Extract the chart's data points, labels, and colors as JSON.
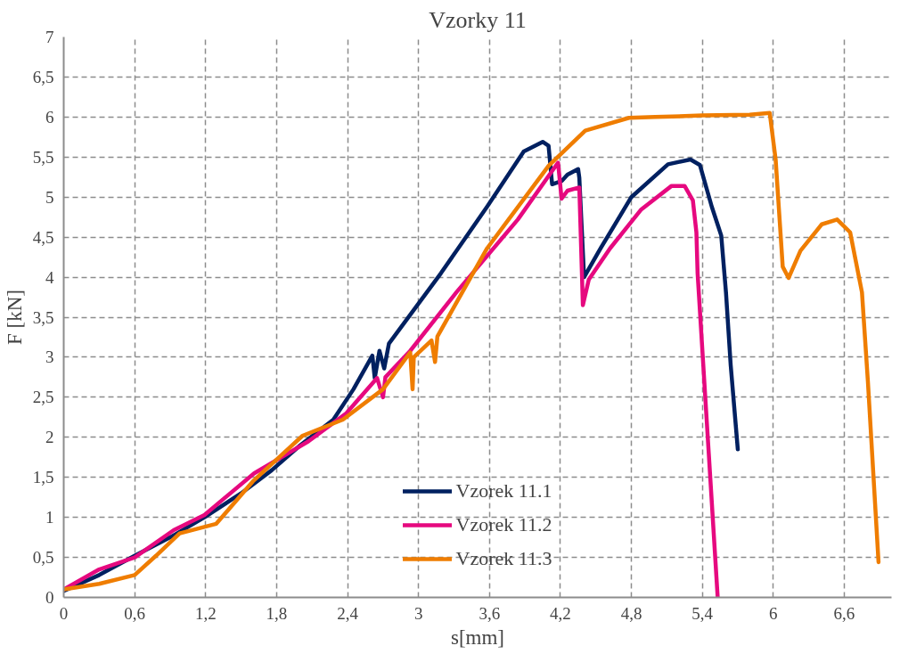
{
  "chart_data": {
    "type": "line",
    "title": "Vzorky 11",
    "xlabel": "s[mm]",
    "ylabel": "F [kN]",
    "xlim": [
      0,
      7
    ],
    "ylim": [
      0,
      7
    ],
    "xticks": [
      0,
      {
        "value": 0.6,
        "label": "0,6"
      },
      {
        "value": 1.2,
        "label": "1,2"
      },
      {
        "value": 1.8,
        "label": "1,8"
      },
      {
        "value": 2.4,
        "label": "2,4"
      },
      3,
      {
        "value": 3.6,
        "label": "3,6"
      },
      {
        "value": 4.2,
        "label": "4,2"
      },
      {
        "value": 4.8,
        "label": "4,8"
      },
      {
        "value": 5.4,
        "label": "5,4"
      },
      6,
      {
        "value": 6.6,
        "label": "6,6"
      }
    ],
    "yticks": [
      0,
      {
        "value": 0.5,
        "label": "0,5"
      },
      1,
      {
        "value": 1.5,
        "label": "1,5"
      },
      2,
      {
        "value": 2.5,
        "label": "2,5"
      },
      3,
      {
        "value": 3.5,
        "label": "3,5"
      },
      4,
      {
        "value": 4.5,
        "label": "4,5"
      },
      5,
      {
        "value": 5.5,
        "label": "5,5"
      },
      6,
      {
        "value": 6.5,
        "label": "6,5"
      },
      7
    ],
    "grid": true,
    "legend": "bottom",
    "line_style": "solid",
    "marker": "none",
    "series": [
      {
        "name": "Vzorek 11.1",
        "color": "#002060",
        "x": [
          0,
          0.3,
          0.6,
          0.9,
          1.19,
          1.5,
          1.76,
          2.0,
          2.28,
          2.45,
          2.61,
          2.63,
          2.67,
          2.71,
          2.75,
          3.19,
          3.58,
          3.89,
          4.05,
          4.1,
          4.13,
          4.21,
          4.26,
          4.35,
          4.36,
          4.4,
          4.54,
          4.8,
          5.11,
          5.3,
          5.38,
          5.48,
          5.56,
          5.6,
          5.64,
          5.7
        ],
        "values": [
          0.08,
          0.28,
          0.52,
          0.75,
          1.0,
          1.3,
          1.59,
          1.9,
          2.22,
          2.6,
          3.02,
          2.74,
          3.08,
          2.86,
          3.17,
          4.05,
          4.88,
          5.57,
          5.69,
          5.64,
          5.16,
          5.2,
          5.28,
          5.35,
          5.24,
          4.0,
          4.36,
          5.0,
          5.41,
          5.47,
          5.4,
          4.88,
          4.52,
          3.81,
          2.9,
          1.85
        ]
      },
      {
        "name": "Vzorek 11.2",
        "color": "#e6097f",
        "x": [
          0,
          0.3,
          0.6,
          0.93,
          1.19,
          1.61,
          2.07,
          2.39,
          2.65,
          2.7,
          2.72,
          2.93,
          3.32,
          3.84,
          4.18,
          4.21,
          4.26,
          4.36,
          4.39,
          4.44,
          4.62,
          4.88,
          5.14,
          5.25,
          5.32,
          5.35,
          5.36,
          5.53
        ],
        "values": [
          0.1,
          0.35,
          0.5,
          0.84,
          1.03,
          1.55,
          1.95,
          2.3,
          2.74,
          2.5,
          2.75,
          3.08,
          3.81,
          4.72,
          5.43,
          4.98,
          5.08,
          5.12,
          3.65,
          3.97,
          4.36,
          4.84,
          5.14,
          5.14,
          4.96,
          4.56,
          4.05,
          0
        ]
      },
      {
        "name": "Vzorek 11.3",
        "color": "#ef7d00",
        "x": [
          0,
          0.3,
          0.6,
          0.78,
          0.98,
          1.29,
          1.6,
          2.02,
          2.36,
          2.7,
          2.93,
          2.95,
          2.96,
          3.11,
          3.14,
          3.16,
          3.58,
          4.1,
          4.41,
          4.78,
          5.0,
          5.4,
          5.8,
          5.97,
          6.02,
          6.08,
          6.13,
          6.23,
          6.41,
          6.54,
          6.65,
          6.75,
          6.8,
          6.89
        ],
        "values": [
          0.1,
          0.17,
          0.28,
          0.52,
          0.8,
          0.92,
          1.45,
          2.02,
          2.22,
          2.6,
          3.06,
          2.6,
          3.0,
          3.21,
          2.94,
          3.26,
          4.36,
          5.39,
          5.83,
          5.99,
          6.0,
          6.02,
          6.03,
          6.05,
          5.47,
          4.13,
          3.99,
          4.33,
          4.66,
          4.72,
          4.56,
          3.81,
          2.7,
          0.44
        ]
      }
    ]
  }
}
